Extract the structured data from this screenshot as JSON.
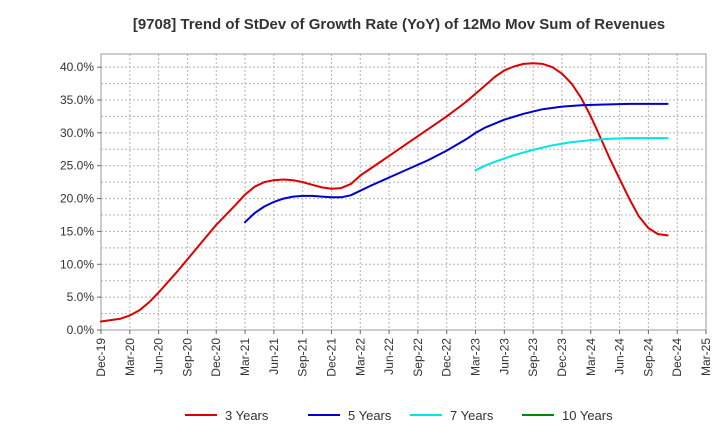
{
  "chart_data": {
    "type": "line",
    "title": "[9708]  Trend of StDev of Growth Rate (YoY) of 12Mo Mov Sum of Revenues",
    "xlabel": "",
    "ylabel": "",
    "ylim": [
      0,
      0.42
    ],
    "y_ticks": [
      0,
      0.05,
      0.1,
      0.15,
      0.2,
      0.25,
      0.3,
      0.35,
      0.4
    ],
    "y_tick_labels": [
      "0.0%",
      "5.0%",
      "10.0%",
      "15.0%",
      "20.0%",
      "25.0%",
      "30.0%",
      "35.0%",
      "40.0%"
    ],
    "x_tick_labels": [
      "Dec-19",
      "Mar-20",
      "Jun-20",
      "Sep-20",
      "Dec-20",
      "Mar-21",
      "Jun-21",
      "Sep-21",
      "Dec-21",
      "Mar-22",
      "Jun-22",
      "Sep-22",
      "Dec-22",
      "Mar-23",
      "Jun-23",
      "Sep-23",
      "Dec-23",
      "Mar-24",
      "Jun-24",
      "Sep-24",
      "Dec-24",
      "Mar-25"
    ],
    "x_unit": "months since Dec-19",
    "xlim": [
      0,
      63
    ],
    "grid": true,
    "legend_position": "bottom",
    "series": [
      {
        "name": "3 Years",
        "color": "#dd0000",
        "points": [
          [
            0,
            0.013
          ],
          [
            2,
            0.017
          ],
          [
            3,
            0.022
          ],
          [
            4,
            0.03
          ],
          [
            5,
            0.042
          ],
          [
            6,
            0.057
          ],
          [
            8,
            0.09
          ],
          [
            10,
            0.125
          ],
          [
            12,
            0.16
          ],
          [
            14,
            0.19
          ],
          [
            15,
            0.206
          ],
          [
            16,
            0.218
          ],
          [
            17,
            0.225
          ],
          [
            18,
            0.228
          ],
          [
            19,
            0.229
          ],
          [
            20,
            0.228
          ],
          [
            21,
            0.225
          ],
          [
            22,
            0.221
          ],
          [
            23,
            0.217
          ],
          [
            24,
            0.215
          ],
          [
            25,
            0.216
          ],
          [
            26,
            0.222
          ],
          [
            27,
            0.235
          ],
          [
            28,
            0.245
          ],
          [
            30,
            0.265
          ],
          [
            32,
            0.285
          ],
          [
            34,
            0.305
          ],
          [
            36,
            0.325
          ],
          [
            38,
            0.347
          ],
          [
            40,
            0.372
          ],
          [
            41,
            0.385
          ],
          [
            42,
            0.395
          ],
          [
            43,
            0.401
          ],
          [
            44,
            0.405
          ],
          [
            45,
            0.406
          ],
          [
            46,
            0.405
          ],
          [
            47,
            0.4
          ],
          [
            48,
            0.39
          ],
          [
            49,
            0.375
          ],
          [
            50,
            0.353
          ],
          [
            51,
            0.325
          ],
          [
            52,
            0.293
          ],
          [
            53,
            0.26
          ],
          [
            54,
            0.23
          ],
          [
            55,
            0.2
          ],
          [
            56,
            0.173
          ],
          [
            57,
            0.155
          ],
          [
            58,
            0.146
          ],
          [
            59,
            0.144
          ]
        ]
      },
      {
        "name": "5 Years",
        "color": "#0000cc",
        "points": [
          [
            15,
            0.164
          ],
          [
            16,
            0.178
          ],
          [
            17,
            0.188
          ],
          [
            18,
            0.195
          ],
          [
            19,
            0.2
          ],
          [
            20,
            0.203
          ],
          [
            21,
            0.204
          ],
          [
            22,
            0.204
          ],
          [
            23,
            0.203
          ],
          [
            24,
            0.202
          ],
          [
            25,
            0.202
          ],
          [
            26,
            0.205
          ],
          [
            27,
            0.212
          ],
          [
            28,
            0.219
          ],
          [
            30,
            0.232
          ],
          [
            32,
            0.245
          ],
          [
            34,
            0.258
          ],
          [
            36,
            0.273
          ],
          [
            38,
            0.29
          ],
          [
            39,
            0.3
          ],
          [
            40,
            0.308
          ],
          [
            42,
            0.32
          ],
          [
            44,
            0.329
          ],
          [
            46,
            0.336
          ],
          [
            48,
            0.34
          ],
          [
            50,
            0.342
          ],
          [
            52,
            0.343
          ],
          [
            55,
            0.344
          ],
          [
            59,
            0.344
          ]
        ]
      },
      {
        "name": "7 Years",
        "color": "#00e5e5",
        "points": [
          [
            39,
            0.243
          ],
          [
            40,
            0.25
          ],
          [
            41,
            0.256
          ],
          [
            43,
            0.266
          ],
          [
            45,
            0.274
          ],
          [
            47,
            0.281
          ],
          [
            49,
            0.286
          ],
          [
            51,
            0.289
          ],
          [
            53,
            0.291
          ],
          [
            55,
            0.292
          ],
          [
            57,
            0.292
          ],
          [
            59,
            0.292
          ]
        ]
      },
      {
        "name": "10 Years",
        "color": "#008800",
        "points": []
      }
    ]
  }
}
